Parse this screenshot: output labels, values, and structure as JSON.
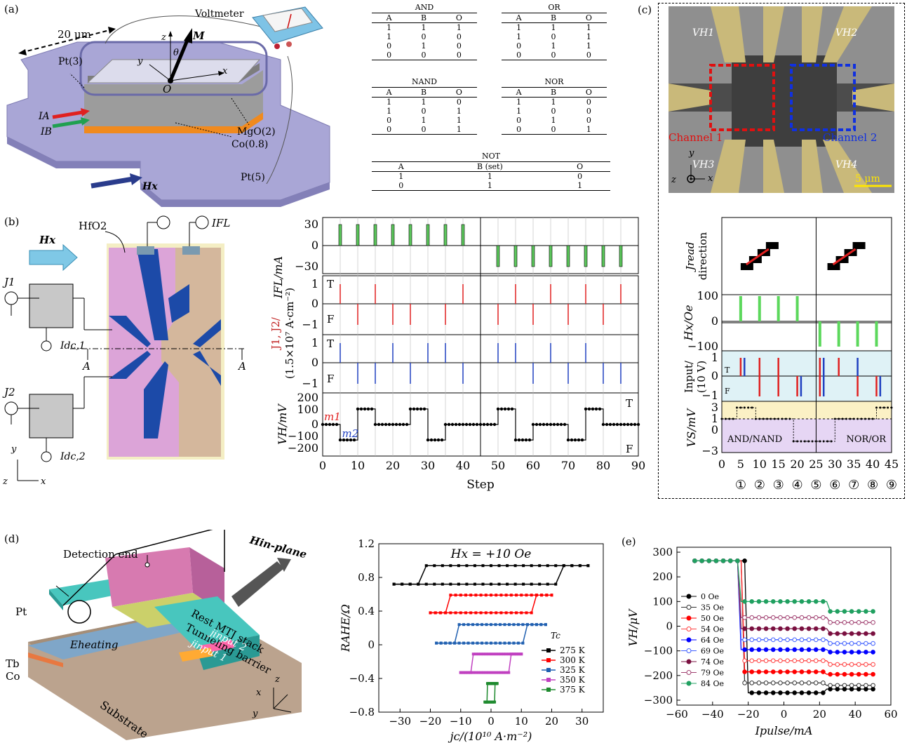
{
  "panels": {
    "a": {
      "label": "(a)",
      "voltmeter": "Voltmeter",
      "width": "20 μm",
      "pt3": "Pt(3)",
      "mgo": "MgO(2)",
      "co": "Co(0.8)",
      "pt5": "Pt(5)",
      "ia": "IA",
      "ib": "IB",
      "hx": "Hx",
      "m": "M",
      "theta": "θ",
      "o": "O",
      "axis_x": "x",
      "axis_y": "y",
      "axis_z": "z"
    },
    "tables": [
      {
        "title": "AND",
        "headers": [
          "A",
          "B",
          "O"
        ],
        "rows": [
          [
            "1",
            "1",
            "1"
          ],
          [
            "1",
            "0",
            "0"
          ],
          [
            "0",
            "1",
            "0"
          ],
          [
            "0",
            "0",
            "0"
          ]
        ]
      },
      {
        "title": "OR",
        "headers": [
          "A",
          "B",
          "O"
        ],
        "rows": [
          [
            "1",
            "1",
            "1"
          ],
          [
            "1",
            "0",
            "1"
          ],
          [
            "0",
            "1",
            "1"
          ],
          [
            "0",
            "0",
            "0"
          ]
        ]
      },
      {
        "title": "NAND",
        "headers": [
          "A",
          "B",
          "O"
        ],
        "rows": [
          [
            "1",
            "1",
            "0"
          ],
          [
            "1",
            "0",
            "1"
          ],
          [
            "0",
            "1",
            "1"
          ],
          [
            "0",
            "0",
            "1"
          ]
        ]
      },
      {
        "title": "NOR",
        "headers": [
          "A",
          "B",
          "O"
        ],
        "rows": [
          [
            "1",
            "1",
            "0"
          ],
          [
            "1",
            "0",
            "0"
          ],
          [
            "0",
            "1",
            "0"
          ],
          [
            "0",
            "0",
            "1"
          ]
        ]
      },
      {
        "title": "NOT",
        "headers": [
          "A",
          "B (set)",
          "O"
        ],
        "rows": [
          [
            "1",
            "1",
            "0"
          ],
          [
            "0",
            "1",
            "1"
          ]
        ]
      }
    ],
    "b": {
      "label": "(b)",
      "hfo2": "HfO2",
      "ifl": "IFL",
      "hx": "Hx",
      "j1": "J1",
      "j2": "J2",
      "idc1": "Idc,1",
      "idc2": "Idc,2",
      "a_left": "A",
      "a_right": "A",
      "axis_y": "y",
      "axis_z": "z",
      "axis_x": "x",
      "plot": {
        "xlabel": "Step",
        "xticks": [
          "0",
          "10",
          "20",
          "30",
          "40",
          "50",
          "60",
          "70",
          "80",
          "90"
        ],
        "ifl_ylabel": "IFL/mA",
        "ifl_ticks": [
          "30",
          "0",
          "−30"
        ],
        "j_ylabel_a": "J1, J2/",
        "j_ylabel_b": "(1.5×10⁷ A·cm⁻²)",
        "j_ticks": [
          "1",
          "0",
          "−1"
        ],
        "t_label": "T",
        "f_label": "F",
        "vh_ylabel": "VH/mV",
        "vh_ticks": [
          "200",
          "100",
          "0",
          "−100",
          "−200"
        ],
        "m1": "m1",
        "m2": "m2"
      }
    },
    "c": {
      "label": "(c)",
      "vh1": "VH1",
      "vh2": "VH2",
      "vh3": "VH3",
      "vh4": "VH4",
      "ch1": "Channel 1",
      "ch2": "Channel 2",
      "scale": "5 μm",
      "axis_y": "y",
      "axis_x": "x",
      "axis_z": "z",
      "jread": "Jread",
      "direction": "direction",
      "hx_label": "Hx/Oe",
      "hx_ticks": [
        "100",
        "0",
        "−100"
      ],
      "input_label": "Input/",
      "input_label2": "(10 V)",
      "in_ticks": [
        "1",
        "0",
        "−1"
      ],
      "t": "T",
      "f": "F",
      "vs_label": "VS/mV",
      "vs_ticks": [
        "3",
        "1",
        "0",
        "−3"
      ],
      "and_nand": "AND/NAND",
      "nor_or": "NOR/OR",
      "xticks": [
        "0",
        "5",
        "10",
        "15",
        "20",
        "25",
        "30",
        "35",
        "40",
        "45"
      ],
      "circles": [
        "①",
        "②",
        "③",
        "④",
        "⑤",
        "⑥",
        "⑦",
        "⑧",
        "⑨"
      ]
    },
    "d": {
      "label": "(d)",
      "detection": "Detection end",
      "hinplane": "Hin-plane",
      "pt": "Pt",
      "rest": "Rest MTJ stack",
      "tunneling": "Tunneling barrier",
      "eheating": "Eheating",
      "tb": "Tb",
      "co": "Co",
      "jinput2": "jinput 2",
      "jinput1": "jinput 1",
      "substrate": "Substrate",
      "axis_z": "z",
      "axis_x": "x",
      "axis_y": "y"
    },
    "e": {
      "label": "(e)"
    }
  },
  "chart_data": [
    {
      "type": "line",
      "id": "b-vh",
      "xlabel": "Step",
      "ylabel": "VH/mV",
      "xlim": [
        0,
        90
      ],
      "ylim": [
        -250,
        250
      ],
      "ifl_pulses_pos": [
        5,
        10,
        15,
        20,
        25,
        30,
        35,
        40
      ],
      "ifl_pulses_neg": [
        50,
        55,
        60,
        65,
        70,
        75,
        80,
        85
      ],
      "ifl_level": 30,
      "j1_T": [
        5,
        15,
        40,
        55,
        65,
        75,
        85
      ],
      "j1_F": [
        10,
        20,
        25,
        35,
        50,
        60,
        70,
        80
      ],
      "j2_T": [
        5,
        20,
        30,
        35,
        50,
        55,
        65,
        75
      ],
      "j2_F": [
        10,
        15,
        25,
        40,
        60,
        70,
        80,
        85
      ],
      "vh_levels": {
        "high": 130,
        "mid": 0,
        "low": -130
      },
      "vh_steps": [
        [
          0,
          0
        ],
        [
          5,
          -130
        ],
        [
          10,
          130
        ],
        [
          15,
          0
        ],
        [
          20,
          0
        ],
        [
          25,
          130
        ],
        [
          30,
          -130
        ],
        [
          35,
          0
        ],
        [
          40,
          0
        ],
        [
          45,
          0
        ],
        [
          50,
          130
        ],
        [
          55,
          -130
        ],
        [
          60,
          0
        ],
        [
          65,
          0
        ],
        [
          70,
          -130
        ],
        [
          75,
          130
        ],
        [
          80,
          0
        ],
        [
          85,
          0
        ],
        [
          90,
          0
        ]
      ]
    },
    {
      "type": "line",
      "id": "c-logic",
      "xlim": [
        0,
        45
      ],
      "hx_pulses_pos": [
        5,
        10,
        15,
        20
      ],
      "hx_pulses_neg": [
        26,
        31,
        36,
        41
      ],
      "hx_level": 100,
      "vs_steps": [
        [
          0,
          1
        ],
        [
          3,
          1
        ],
        [
          4,
          3
        ],
        [
          8,
          3
        ],
        [
          9,
          1
        ],
        [
          18,
          1
        ],
        [
          19,
          -3
        ],
        [
          29,
          -3
        ],
        [
          30,
          1
        ],
        [
          40,
          1
        ],
        [
          41,
          3
        ],
        [
          45,
          3
        ]
      ]
    },
    {
      "type": "line",
      "id": "d-rahe",
      "xlabel": "jc/(10¹⁰ A·m⁻²)",
      "ylabel": "RAHE/Ω",
      "annotation": "Hx = +10 Oe",
      "xlim": [
        -37,
        37
      ],
      "ylim": [
        -0.8,
        1.2
      ],
      "xticks": [
        "−30",
        "−20",
        "−10",
        "0",
        "10",
        "20",
        "30"
      ],
      "yticks": [
        "1.2",
        "0.8",
        "0.4",
        "0",
        "−0.4",
        "−0.8"
      ],
      "legend_title": "Tc",
      "series": [
        {
          "name": "275 K",
          "color": "#000000",
          "xmax": 32,
          "coerc": 22,
          "hi": 0.94,
          "lo": 0.72
        },
        {
          "name": "300 K",
          "color": "#ff0000",
          "xmax": 20,
          "coerc": 15,
          "hi": 0.59,
          "lo": 0.38
        },
        {
          "name": "325 K",
          "color": "#1f5fb0",
          "xmax": 18,
          "coerc": 11,
          "hi": 0.24,
          "lo": 0.02
        },
        {
          "name": "350 K",
          "color": "#c040c0",
          "xmax": 10,
          "coerc": 6,
          "hi": -0.11,
          "lo": -0.33
        },
        {
          "name": "375 K",
          "color": "#1e8a2e",
          "xmax": 2,
          "coerc": 1.2,
          "hi": -0.46,
          "lo": -0.68
        }
      ]
    },
    {
      "type": "line",
      "id": "e-vh",
      "xlabel": "Ipulse/mA",
      "ylabel": "VH/μV",
      "xlim": [
        -60,
        60
      ],
      "ylim": [
        -320,
        320
      ],
      "xticks": [
        "−60",
        "−40",
        "−20",
        "0",
        "20",
        "40",
        "60"
      ],
      "yticks": [
        "300",
        "200",
        "100",
        "0",
        "−100",
        "−200",
        "−300"
      ],
      "series": [
        {
          "name": "0 Oe",
          "color": "#000000",
          "marker": "square-filled",
          "plateau": -270,
          "low": -255,
          "sw1": -21,
          "sw2": 23
        },
        {
          "name": "35 Oe",
          "color": "#333333",
          "marker": "square-open",
          "plateau": -230,
          "low": -240,
          "sw1": -22,
          "sw2": 24
        },
        {
          "name": "50 Oe",
          "color": "#ff0000",
          "marker": "circle-filled",
          "plateau": -185,
          "low": -195,
          "sw1": -23,
          "sw2": 24
        },
        {
          "name": "54 Oe",
          "color": "#ff4040",
          "marker": "circle-open",
          "plateau": -140,
          "low": -155,
          "sw1": -23,
          "sw2": 25
        },
        {
          "name": "64 Oe",
          "color": "#0000ff",
          "marker": "triangle-filled",
          "plateau": -95,
          "low": -105,
          "sw1": -24,
          "sw2": 25
        },
        {
          "name": "69 Oe",
          "color": "#4060ff",
          "marker": "triangle-open",
          "plateau": -55,
          "low": -70,
          "sw1": -24,
          "sw2": 25
        },
        {
          "name": "74 Oe",
          "color": "#7a1040",
          "marker": "star-filled",
          "plateau": -10,
          "low": -30,
          "sw1": -25,
          "sw2": 26
        },
        {
          "name": "79 Oe",
          "color": "#a04070",
          "marker": "star-open",
          "plateau": 35,
          "low": 15,
          "sw1": -25,
          "sw2": 26
        },
        {
          "name": "84 Oe",
          "color": "#20a060",
          "marker": "diamond-filled",
          "plateau": 100,
          "low": 60,
          "sw1": -25,
          "sw2": 26
        }
      ],
      "high": 265
    }
  ]
}
